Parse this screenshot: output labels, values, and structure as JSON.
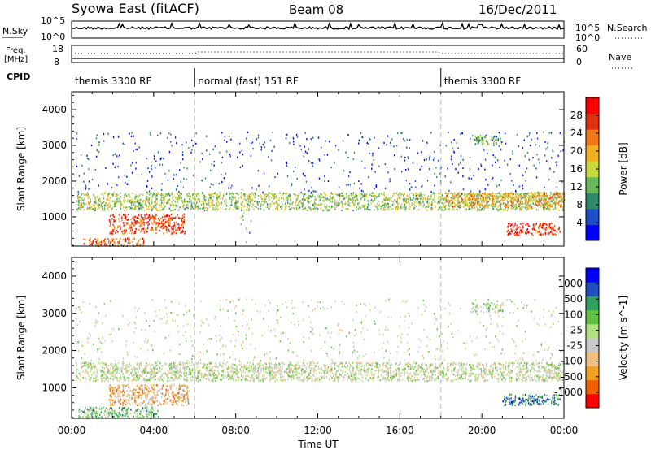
{
  "header": {
    "station": "Syowa East (fitACF)",
    "beam": "Beam 08",
    "date": "16/Dec/2011"
  },
  "summary_panels": {
    "nsky_label": "N.Sky",
    "nsky_ticks_left": [
      "10^5",
      "10^0"
    ],
    "nsearch_label": "N.Search",
    "nsearch_ticks_right": [
      "10^5",
      "10^0"
    ],
    "freq_label": "Freq.",
    "freq_unit": "[MHz]",
    "freq_ticks": [
      "18",
      "8"
    ],
    "nave_label": "Nave",
    "nave_ticks": [
      "60",
      "0"
    ],
    "cpid_label": "CPID",
    "cpid_segments": [
      {
        "label": "themis 3300 RF",
        "start_hour": 0,
        "end_hour": 6
      },
      {
        "label": "normal (fast) 151 RF",
        "start_hour": 6,
        "end_hour": 18
      },
      {
        "label": "themis 3300 RF",
        "start_hour": 18,
        "end_hour": 24
      }
    ]
  },
  "chart_data": [
    {
      "type": "heatmap",
      "parameter": "power",
      "ylabel": "Slant Range [km]",
      "ylim": [
        180,
        4500
      ],
      "yticks": [
        1000,
        2000,
        3000,
        4000
      ],
      "xlim_hours": [
        0,
        24
      ],
      "colorbar": {
        "label": "Power [dB]",
        "range": [
          0,
          32
        ],
        "ticks": [
          "4",
          "8",
          "12",
          "16",
          "20",
          "24",
          "28"
        ],
        "colors": [
          "#0000ff",
          "#1e4fc8",
          "#2f8a6a",
          "#66b85a",
          "#c8d83a",
          "#f0b020",
          "#f07818",
          "#e03010",
          "#ff0000"
        ]
      },
      "scatter_regions": [
        {
          "start_hour": 0.2,
          "end_hour": 24,
          "min_km": 1200,
          "max_km": 1700,
          "level": 0.45
        },
        {
          "start_hour": 1.8,
          "end_hour": 5.5,
          "min_km": 550,
          "max_km": 1100,
          "level": 0.8
        },
        {
          "start_hour": 0.5,
          "end_hour": 3.5,
          "min_km": 200,
          "max_km": 420,
          "level": 0.75
        },
        {
          "start_hour": 0.2,
          "end_hour": 24,
          "min_km": 1700,
          "max_km": 3400,
          "level": 0.15
        },
        {
          "start_hour": 18.2,
          "end_hour": 24,
          "min_km": 1300,
          "max_km": 1700,
          "level": 0.65
        },
        {
          "start_hour": 21.2,
          "end_hour": 23.8,
          "min_km": 500,
          "max_km": 850,
          "level": 0.85
        },
        {
          "start_hour": 19.5,
          "end_hour": 21,
          "min_km": 3050,
          "max_km": 3300,
          "level": 0.35
        },
        {
          "start_hour": 8.2,
          "end_hour": 8.8,
          "min_km": 230,
          "max_km": 1700,
          "level": 0.35
        }
      ]
    },
    {
      "type": "heatmap",
      "parameter": "velocity",
      "ylabel": "Slant Range [km]",
      "ylim": [
        180,
        4500
      ],
      "yticks": [
        1000,
        2000,
        3000,
        4000
      ],
      "xlim_hours": [
        0,
        24
      ],
      "xticks": [
        "00:00",
        "04:00",
        "08:00",
        "12:00",
        "16:00",
        "20:00",
        "00:00"
      ],
      "xlabel": "Time UT",
      "colorbar": {
        "label": "Velocity [m s^-1]",
        "range": [
          -1300,
          1300
        ],
        "ticks": [
          "1000",
          "500",
          "100",
          "25",
          "-25",
          "-100",
          "-500",
          "-1000"
        ],
        "colors": [
          "#ff0000",
          "#f06000",
          "#f0a020",
          "#f0c080",
          "#c8c8c8",
          "#b0e080",
          "#60c040",
          "#30a060",
          "#2050c0",
          "#0000ff"
        ]
      },
      "scatter_regions": [
        {
          "start_hour": 0.2,
          "end_hour": 24,
          "min_km": 1200,
          "max_km": 1700,
          "level": 0.5
        },
        {
          "start_hour": 1.8,
          "end_hour": 5.7,
          "min_km": 550,
          "max_km": 1100,
          "level": 0.3
        },
        {
          "start_hour": 0.3,
          "end_hour": 4.2,
          "min_km": 200,
          "max_km": 500,
          "level": 0.65
        },
        {
          "start_hour": 0.2,
          "end_hour": 24,
          "min_km": 1700,
          "max_km": 3400,
          "level": 0.5
        },
        {
          "start_hour": 21,
          "end_hour": 23.8,
          "min_km": 550,
          "max_km": 850,
          "level": 0.8
        },
        {
          "start_hour": 19.5,
          "end_hour": 21,
          "min_km": 3050,
          "max_km": 3300,
          "level": 0.55
        }
      ]
    }
  ]
}
